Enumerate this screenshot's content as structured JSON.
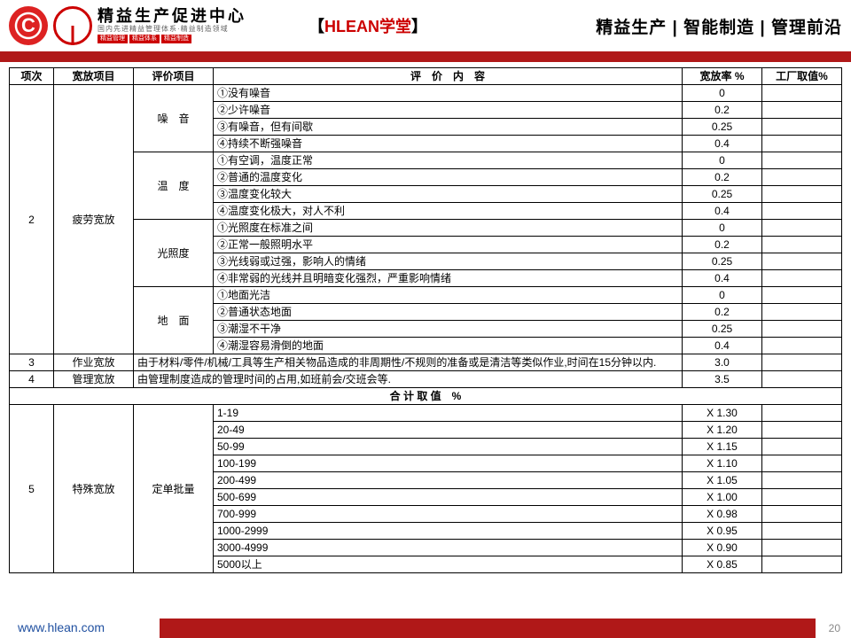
{
  "header": {
    "logo_main": "精益生产促进中心",
    "logo_sub": "国内先进精益管理体系·精益制造领域",
    "tags": [
      "精益管理",
      "精益体系",
      "精益制造"
    ],
    "center_prefix": "【",
    "center_brand": "HLEAN",
    "center_suffix": "学堂",
    "center_suffix2": "】",
    "right": "精益生产 | 智能制造 | 管理前沿"
  },
  "cols": {
    "c1": "项次",
    "c2": "宽放项目",
    "c3": "评价项目",
    "c4": "评　价　内　容",
    "c5": "宽放率 %",
    "c6": "工厂取值%"
  },
  "sec2": {
    "num": "2",
    "name": "疲劳宽放",
    "groups": [
      {
        "title": "噪　音",
        "rows": [
          [
            "①没有噪音",
            "0"
          ],
          [
            "②少许噪音",
            "0.2"
          ],
          [
            "③有噪音，但有间歇",
            "0.25"
          ],
          [
            "④持续不断强噪音",
            "0.4"
          ]
        ]
      },
      {
        "title": "温　度",
        "rows": [
          [
            "①有空调，温度正常",
            "0"
          ],
          [
            "②普通的温度变化",
            "0.2"
          ],
          [
            "③温度变化较大",
            "0.25"
          ],
          [
            "④温度变化极大，对人不利",
            "0.4"
          ]
        ]
      },
      {
        "title": "光照度",
        "rows": [
          [
            "①光照度在标准之间",
            "0"
          ],
          [
            "②正常一般照明水平",
            "0.2"
          ],
          [
            "③光线弱或过强，影响人的情绪",
            "0.25"
          ],
          [
            "④非常弱的光线并且明暗变化强烈，严重影响情绪",
            "0.4"
          ]
        ]
      },
      {
        "title": "地　面",
        "rows": [
          [
            "①地面光洁",
            "0"
          ],
          [
            "②普通状态地面",
            "0.2"
          ],
          [
            "③潮湿不干净",
            "0.25"
          ],
          [
            "④潮湿容易滑倒的地面",
            "0.4"
          ]
        ]
      }
    ]
  },
  "sec3": {
    "num": "3",
    "name": "作业宽放",
    "desc": "由于材料/零件/机械/工具等生产相关物品造成的非周期性/不规则的准备或是清洁等类似作业,时间在15分钟以内.",
    "rate": "3.0"
  },
  "sec4": {
    "num": "4",
    "name": "管理宽放",
    "desc": "由管理制度造成的管理时间的占用,如班前会/交班会等.",
    "rate": "3.5"
  },
  "sum_row": "合 计 取 值　%",
  "sec5": {
    "num": "5",
    "name": "特殊宽放",
    "sub": "定单批量",
    "rows": [
      [
        "1-19",
        "X 1.30"
      ],
      [
        "20-49",
        "X 1.20"
      ],
      [
        "50-99",
        "X 1.15"
      ],
      [
        "100-199",
        "X 1.10"
      ],
      [
        "200-499",
        "X 1.05"
      ],
      [
        "500-699",
        "X 1.00"
      ],
      [
        "700-999",
        "X 0.98"
      ],
      [
        "1000-2999",
        "X 0.95"
      ],
      [
        "3000-4999",
        "X 0.90"
      ],
      [
        "5000以上",
        "X 0.85"
      ]
    ]
  },
  "footer_url": "www.hlean.com",
  "page": "20"
}
